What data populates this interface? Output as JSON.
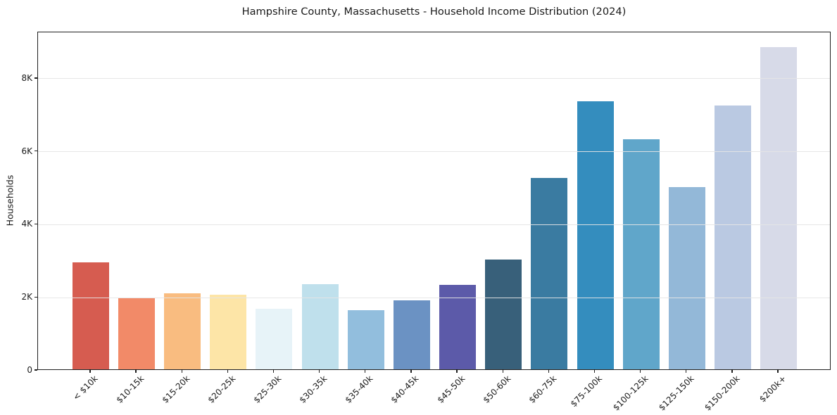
{
  "chart_data": {
    "type": "bar",
    "title": "Hampshire County, Massachusetts - Household Income Distribution (2024)",
    "xlabel": "",
    "ylabel": "Households",
    "categories": [
      "< $10k",
      "$10-15k",
      "$15-20k",
      "$20-25k",
      "$25-30k",
      "$30-35k",
      "$35-40k",
      "$40-45k",
      "$45-50k",
      "$50-60k",
      "$60-75k",
      "$75-100k",
      "$100-125k",
      "$125-150k",
      "$150-200k",
      "$200k+"
    ],
    "values": [
      2930,
      1950,
      2080,
      2040,
      1660,
      2330,
      1620,
      1890,
      2320,
      3000,
      5240,
      7350,
      6300,
      5000,
      7220,
      8830
    ],
    "bar_colors": [
      "#d65c50",
      "#f28a68",
      "#f9bc80",
      "#fde5a7",
      "#e7f3f8",
      "#bfe0ec",
      "#92bedd",
      "#6b92c3",
      "#5c5aa9",
      "#38607a",
      "#3a7ba1",
      "#348dbe",
      "#60a6ca",
      "#93b8d8",
      "#bac9e2",
      "#d7dae8"
    ],
    "yticks": [
      {
        "label": "0",
        "value": 0
      },
      {
        "label": "2K",
        "value": 2000
      },
      {
        "label": "4K",
        "value": 4000
      },
      {
        "label": "6K",
        "value": 6000
      },
      {
        "label": "8K",
        "value": 8000
      }
    ],
    "ylim": [
      0,
      9270
    ],
    "grid": true,
    "legend": "none",
    "x_tick_rotation_deg": 45
  }
}
